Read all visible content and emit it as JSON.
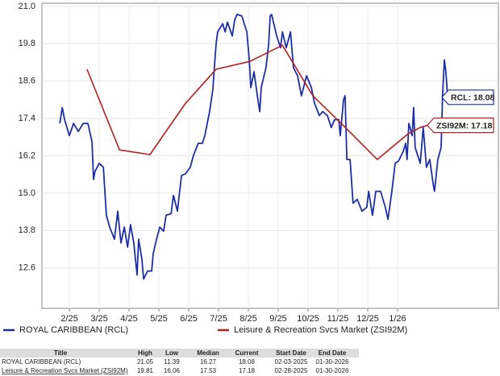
{
  "chart_data": {
    "type": "line",
    "xlim": [
      -0.92,
      14.38
    ],
    "xticks": [
      {
        "value": 0,
        "label": "2/25"
      },
      {
        "value": 1,
        "label": "3/25"
      },
      {
        "value": 2,
        "label": "4/25"
      },
      {
        "value": 3,
        "label": "5/25"
      },
      {
        "value": 4,
        "label": "6/25"
      },
      {
        "value": 5,
        "label": "7/25"
      },
      {
        "value": 6,
        "label": "8/25"
      },
      {
        "value": 7,
        "label": "9/25"
      },
      {
        "value": 8,
        "label": "10/25"
      },
      {
        "value": 9,
        "label": "11/25"
      },
      {
        "value": 10,
        "label": "12/25"
      },
      {
        "value": 11,
        "label": "1/26"
      }
    ],
    "ylim": [
      11.3,
      21.1
    ],
    "yticks": [
      12.6,
      13.8,
      {
        "value": 15.0,
        "label": "15.0"
      },
      16.2,
      17.4,
      18.6,
      19.8,
      {
        "value": 21.0,
        "label": "21.0"
      }
    ],
    "grid": true,
    "series": [
      {
        "name": "ROYAL CARIBBEAN (RCL)",
        "color": "#1c2fa6",
        "end_label": "RCL: 18.08",
        "x": [
          -0.32,
          -0.24,
          -0.16,
          0,
          0.14,
          0.3,
          0.46,
          0.62,
          0.76,
          0.81,
          0.86,
          1.0,
          1.14,
          1.24,
          1.35,
          1.51,
          1.62,
          1.73,
          1.84,
          1.95,
          2.05,
          2.16,
          2.27,
          2.32,
          2.43,
          2.49,
          2.62,
          2.76,
          2.81,
          2.92,
          3.03,
          3.16,
          3.24,
          3.41,
          3.49,
          3.62,
          3.76,
          3.89,
          4.05,
          4.16,
          4.32,
          4.46,
          4.54,
          4.7,
          4.81,
          4.86,
          4.92,
          4.97,
          5.14,
          5.22,
          5.3,
          5.46,
          5.54,
          5.62,
          5.78,
          5.95,
          6.03,
          6.08,
          6.19,
          6.32,
          6.38,
          6.43,
          6.59,
          6.68,
          6.73,
          6.78,
          6.95,
          7.08,
          7.14,
          7.27,
          7.41,
          7.51,
          7.65,
          7.78,
          7.95,
          8.11,
          8.22,
          8.38,
          8.49,
          8.65,
          8.78,
          8.89,
          9.03,
          9.08,
          9.19,
          9.24,
          9.3,
          9.41,
          9.51,
          9.65,
          9.81,
          9.97,
          10.03,
          10.16,
          10.27,
          10.43,
          10.59,
          10.68,
          10.81,
          10.92,
          11.03,
          11.19,
          11.27,
          11.32,
          11.38,
          11.49,
          11.54,
          11.59,
          11.76,
          11.86,
          11.97,
          12.08,
          12.19,
          12.24,
          12.35,
          12.46,
          12.51,
          12.57,
          12.62,
          12.68
        ],
        "values": [
          17.24,
          17.75,
          17.36,
          16.85,
          17.24,
          16.98,
          17.24,
          17.24,
          16.65,
          15.44,
          15.7,
          15.96,
          15.83,
          14.29,
          13.91,
          13.52,
          14.42,
          13.4,
          13.91,
          13.27,
          13.99,
          13.4,
          12.37,
          13.52,
          12.88,
          12.24,
          12.5,
          12.5,
          13.06,
          13.52,
          13.91,
          13.78,
          14.29,
          14.34,
          14.93,
          14.42,
          15.57,
          15.62,
          15.83,
          16.21,
          16.6,
          16.6,
          16.85,
          17.62,
          18.34,
          19.03,
          19.8,
          20.18,
          20.44,
          20.18,
          20.49,
          20.05,
          20.56,
          20.74,
          20.69,
          20.18,
          19.28,
          18.39,
          18.9,
          18.0,
          17.62,
          18.39,
          19.03,
          19.8,
          20.69,
          20.74,
          20.05,
          19.67,
          20.18,
          19.67,
          20.18,
          19.03,
          18.77,
          18.13,
          18.77,
          18.39,
          17.88,
          17.49,
          17.62,
          17.49,
          17.11,
          17.36,
          17.36,
          16.85,
          18.0,
          18.13,
          16.08,
          16.08,
          14.68,
          14.8,
          14.42,
          14.55,
          15.06,
          14.29,
          15.06,
          15.06,
          14.55,
          14.16,
          15.06,
          15.96,
          16.03,
          16.34,
          16.6,
          16.08,
          17.24,
          16.85,
          17.75,
          16.47,
          15.96,
          17.11,
          15.83,
          16.08,
          15.32,
          15.06,
          16.08,
          16.47,
          18.13,
          19.28,
          18.9,
          18.08
        ]
      },
      {
        "name": "Leisure & Recreation Svcs Market (ZSI92M)",
        "color": "#b3201f",
        "end_label": "ZSI92M: 17.18",
        "x": [
          0.59,
          1.68,
          2.7,
          3.89,
          4.92,
          6.05,
          7.14,
          8.16,
          9.3,
          10.32,
          11.35,
          11.76,
          12.0
        ],
        "values": [
          18.98,
          16.39,
          16.24,
          17.88,
          18.98,
          19.23,
          19.75,
          18.13,
          17.06,
          16.08,
          16.9,
          17.11,
          17.18
        ]
      }
    ]
  },
  "table": {
    "header": [
      "Title",
      "High",
      "Low",
      "Median",
      "Current",
      "Start Date",
      "End Date"
    ],
    "rows": [
      [
        "ROYAL CARIBBEAN (RCL)",
        21.05,
        11.39,
        16.27,
        18.08,
        "02-03-2025",
        "01-30-2026"
      ],
      [
        "Leisure & Recreation Svcs Market (ZSI92M)",
        19.81,
        16.06,
        17.53,
        17.18,
        "02-28-2025",
        "01-30-2026"
      ]
    ]
  }
}
